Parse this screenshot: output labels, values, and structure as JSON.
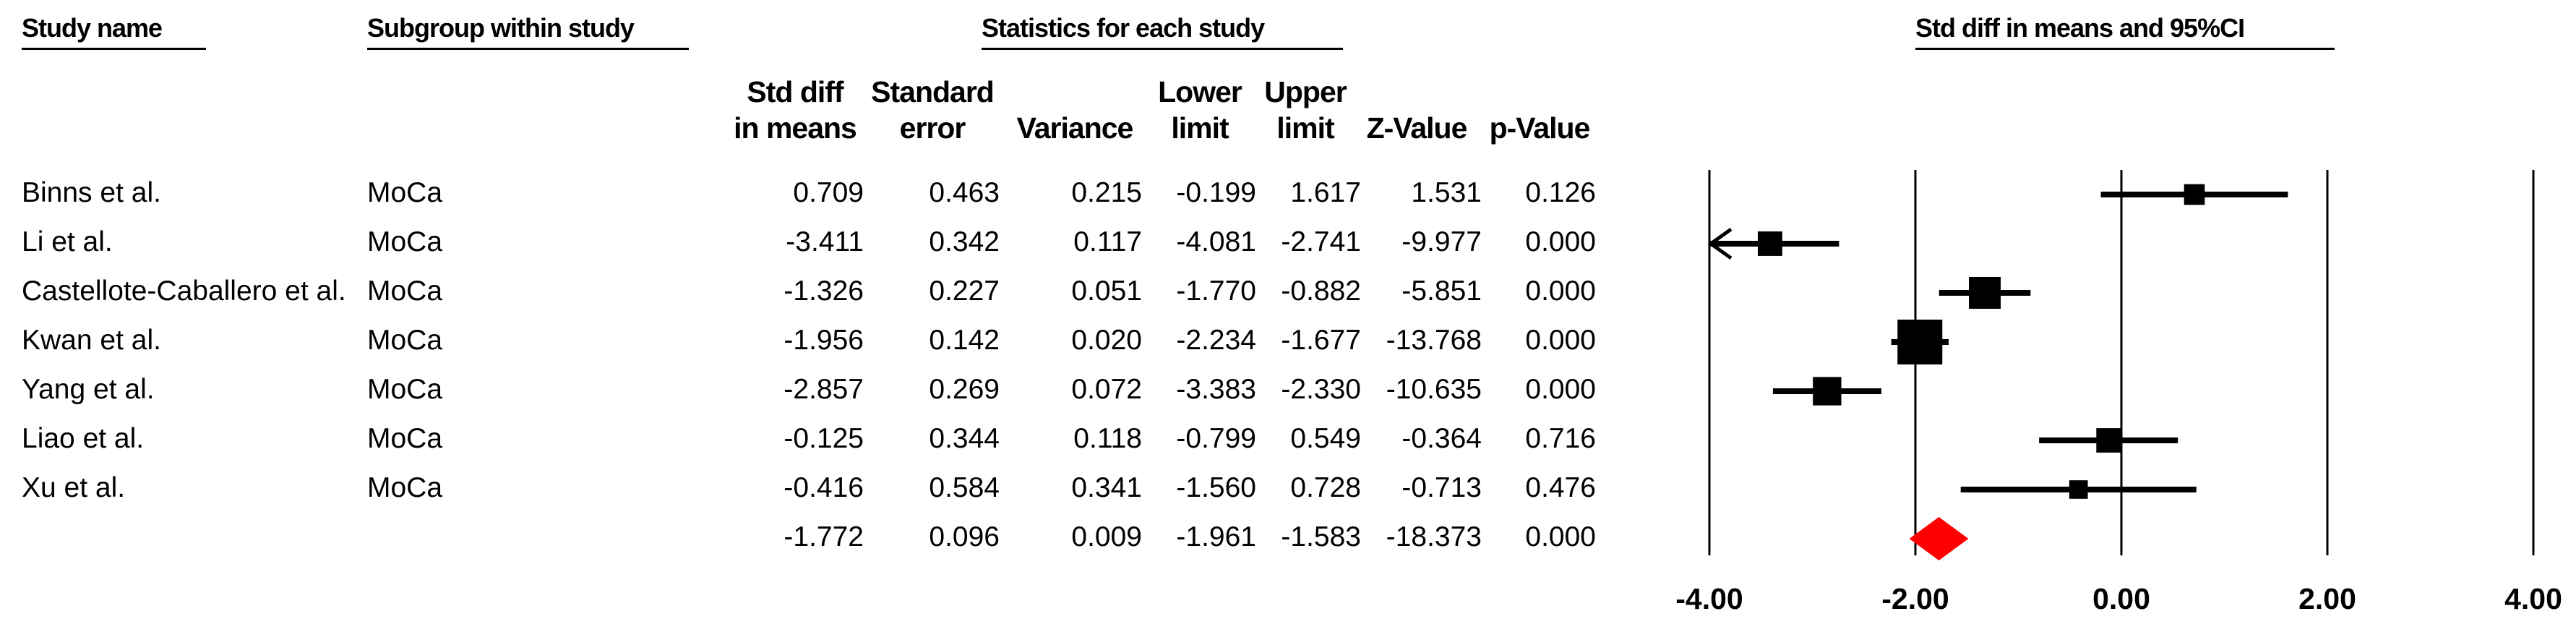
{
  "headers": {
    "study_name": "Study name",
    "subgroup": "Subgroup within study",
    "statistics": "Statistics for each study",
    "forest": "Std diff in means and 95%CI"
  },
  "columns": [
    {
      "key": "smd",
      "label": "Std diff\nin means"
    },
    {
      "key": "se",
      "label": "Standard\nerror"
    },
    {
      "key": "var",
      "label": "Variance"
    },
    {
      "key": "lower",
      "label": "Lower\nlimit"
    },
    {
      "key": "upper",
      "label": "Upper\nlimit"
    },
    {
      "key": "z",
      "label": "Z-Value"
    },
    {
      "key": "p",
      "label": "p-Value"
    }
  ],
  "rows": [
    {
      "study": "Binns et al.",
      "subgroup": "MoCa",
      "smd": "0.709",
      "se": "0.463",
      "var": "0.215",
      "lower": "-0.199",
      "upper": "1.617",
      "z": "1.531",
      "p": "0.126"
    },
    {
      "study": "Li et al.",
      "subgroup": "MoCa",
      "smd": "-3.411",
      "se": "0.342",
      "var": "0.117",
      "lower": "-4.081",
      "upper": "-2.741",
      "z": "-9.977",
      "p": "0.000"
    },
    {
      "study": "Castellote-Caballero et al.",
      "subgroup": "MoCa",
      "smd": "-1.326",
      "se": "0.227",
      "var": "0.051",
      "lower": "-1.770",
      "upper": "-0.882",
      "z": "-5.851",
      "p": "0.000"
    },
    {
      "study": "Kwan et al.",
      "subgroup": "MoCa",
      "smd": "-1.956",
      "se": "0.142",
      "var": "0.020",
      "lower": "-2.234",
      "upper": "-1.677",
      "z": "-13.768",
      "p": "0.000"
    },
    {
      "study": "Yang et al.",
      "subgroup": "MoCa",
      "smd": "-2.857",
      "se": "0.269",
      "var": "0.072",
      "lower": "-3.383",
      "upper": "-2.330",
      "z": "-10.635",
      "p": "0.000"
    },
    {
      "study": "Liao et al.",
      "subgroup": "MoCa",
      "smd": "-0.125",
      "se": "0.344",
      "var": "0.118",
      "lower": "-0.799",
      "upper": "0.549",
      "z": "-0.364",
      "p": "0.716"
    },
    {
      "study": "Xu et al.",
      "subgroup": "MoCa",
      "smd": "-0.416",
      "se": "0.584",
      "var": "0.341",
      "lower": "-1.560",
      "upper": "0.728",
      "z": "-0.713",
      "p": "0.476"
    }
  ],
  "pooled": {
    "smd": "-1.772",
    "se": "0.096",
    "var": "0.009",
    "lower": "-1.961",
    "upper": "-1.583",
    "z": "-18.373",
    "p": "0.000"
  },
  "chart_data": {
    "type": "forest",
    "title": "Std diff in means and 95%CI",
    "xlim": [
      -4,
      4
    ],
    "xticks": [
      -4,
      -2,
      0,
      2,
      4
    ],
    "xtick_labels": [
      "-4.00",
      "-2.00",
      "0.00",
      "2.00",
      "4.00"
    ],
    "studies": [
      {
        "name": "Binns et al.",
        "estimate": 0.709,
        "lower": -0.199,
        "upper": 1.617,
        "variance": 0.215
      },
      {
        "name": "Li et al.",
        "estimate": -3.411,
        "lower": -4.081,
        "upper": -2.741,
        "variance": 0.117
      },
      {
        "name": "Castellote-Caballero et al.",
        "estimate": -1.326,
        "lower": -1.77,
        "upper": -0.882,
        "variance": 0.051
      },
      {
        "name": "Kwan et al.",
        "estimate": -1.956,
        "lower": -2.234,
        "upper": -1.677,
        "variance": 0.02
      },
      {
        "name": "Yang et al.",
        "estimate": -2.857,
        "lower": -3.383,
        "upper": -2.33,
        "variance": 0.072
      },
      {
        "name": "Liao et al.",
        "estimate": -0.125,
        "lower": -0.799,
        "upper": 0.549,
        "variance": 0.118
      },
      {
        "name": "Xu et al.",
        "estimate": -0.416,
        "lower": -1.56,
        "upper": 0.728,
        "variance": 0.341
      }
    ],
    "pooled": {
      "estimate": -1.772,
      "lower": -1.961,
      "upper": -1.583
    },
    "marker_color": "#000000",
    "pooled_color": "#ff0000"
  }
}
